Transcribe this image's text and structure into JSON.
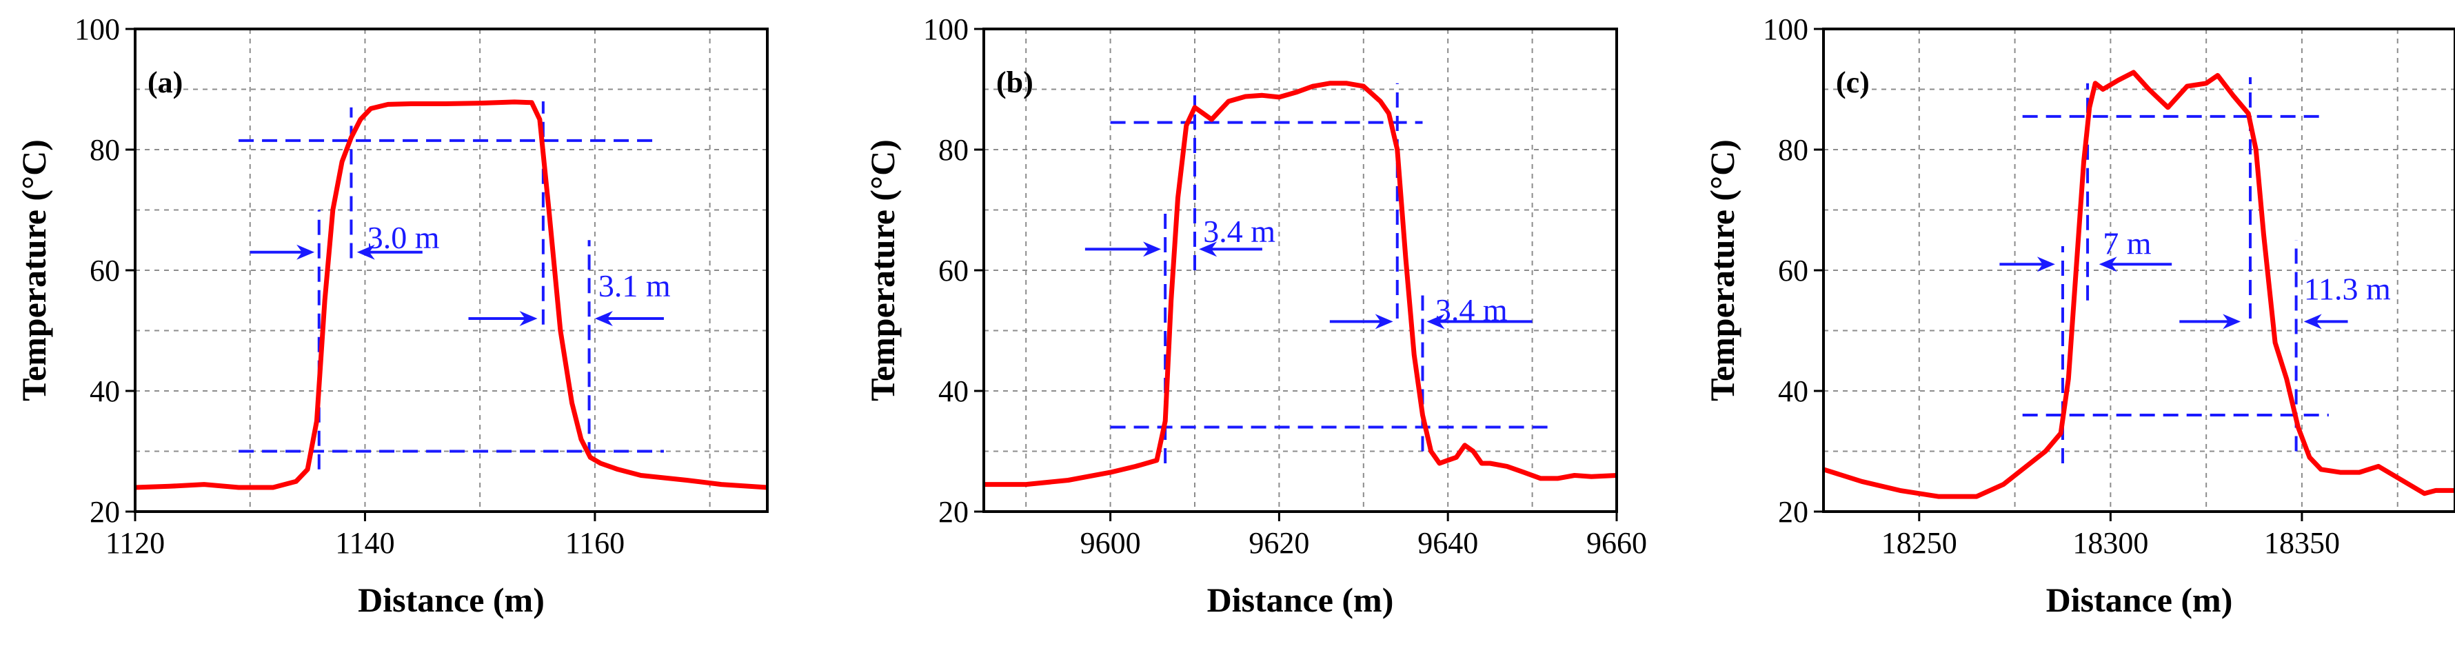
{
  "chart_data": [
    {
      "type": "line",
      "panel_label": "(a)",
      "xlabel": "Distance (m)",
      "ylabel": "Temperature (°C)",
      "xlim": [
        1120,
        1175
      ],
      "ylim": [
        20,
        100
      ],
      "xticks": [
        1120,
        1140,
        1160
      ],
      "xtick_labels": [
        "1120",
        "1140",
        "1160"
      ],
      "yticks": [
        20,
        40,
        60,
        80,
        100
      ],
      "ytick_labels": [
        "20",
        "40",
        "60",
        "80",
        "100"
      ],
      "grid": true,
      "series": [
        {
          "name": "Temperature",
          "color": "#ff0000",
          "x": [
            1120,
            1123,
            1126,
            1129,
            1132,
            1134,
            1135,
            1135.8,
            1136.5,
            1137.2,
            1138,
            1138.8,
            1139.6,
            1140.5,
            1142,
            1144,
            1147,
            1150,
            1153,
            1154.5,
            1155.2,
            1156,
            1157,
            1158,
            1158.8,
            1159.6,
            1160.5,
            1162,
            1164,
            1166,
            1168,
            1171,
            1175
          ],
          "y": [
            24,
            24.2,
            24.5,
            24,
            24,
            25,
            27,
            35,
            55,
            70,
            78,
            82,
            85,
            86.8,
            87.5,
            87.6,
            87.6,
            87.7,
            87.9,
            87.8,
            85,
            70,
            50,
            38,
            32,
            29,
            28,
            27,
            26,
            25.6,
            25.2,
            24.5,
            24
          ]
        }
      ],
      "guides": {
        "h": [
          {
            "y": 81.5,
            "x0": 1129,
            "x1": 1165
          },
          {
            "y": 30,
            "x0": 1129,
            "x1": 1166
          }
        ],
        "v": [
          {
            "x": 1136,
            "y0": 27,
            "y1": 70
          },
          {
            "x": 1138.8,
            "y0": 62,
            "y1": 87
          },
          {
            "x": 1155.5,
            "y0": 51,
            "y1": 88
          },
          {
            "x": 1159.5,
            "y0": 29,
            "y1": 65
          }
        ]
      },
      "annotations": [
        {
          "text": "3.0 m",
          "x": 1140.2,
          "y": 65.5
        },
        {
          "text": "3.1 m",
          "x": 1160.3,
          "y": 57.5
        }
      ],
      "arrows": [
        {
          "x_from": 1130,
          "x_to": 1135.6,
          "y": 63,
          "dir": "right"
        },
        {
          "x_from": 1145,
          "x_to": 1139.3,
          "y": 63,
          "dir": "left"
        },
        {
          "x_from": 1149,
          "x_to": 1155,
          "y": 52,
          "dir": "right"
        },
        {
          "x_from": 1166,
          "x_to": 1160,
          "y": 52,
          "dir": "left"
        }
      ]
    },
    {
      "type": "line",
      "panel_label": "(b)",
      "xlabel": "Distance (m)",
      "ylabel": "Temperature (°C)",
      "xlim": [
        9585,
        9660
      ],
      "ylim": [
        20,
        100
      ],
      "xticks": [
        9600,
        9620,
        9640,
        9660
      ],
      "xtick_labels": [
        "9600",
        "9620",
        "9640",
        "9660"
      ],
      "yticks": [
        20,
        40,
        60,
        80,
        100
      ],
      "ytick_labels": [
        "20",
        "40",
        "60",
        "80",
        "100"
      ],
      "grid": true,
      "series": [
        {
          "name": "Temperature",
          "color": "#ff0000",
          "x": [
            9585,
            9590,
            9595,
            9600,
            9603,
            9605.5,
            9606.5,
            9607.2,
            9608,
            9609,
            9610,
            9611,
            9612,
            9613,
            9614,
            9616,
            9618,
            9620,
            9622,
            9624,
            9626,
            9628,
            9630,
            9632,
            9633,
            9634,
            9635,
            9636,
            9637,
            9638,
            9639,
            9640,
            9641,
            9642,
            9643,
            9644,
            9645,
            9647,
            9649,
            9651,
            9653,
            9655,
            9657,
            9660
          ],
          "y": [
            24.5,
            24.5,
            25.2,
            26.5,
            27.5,
            28.5,
            35,
            55,
            72,
            84,
            87,
            86,
            85,
            86.5,
            88,
            88.8,
            89,
            88.7,
            89.5,
            90.5,
            91,
            91,
            90.5,
            88,
            86,
            80,
            62,
            46,
            36,
            30,
            28,
            28.5,
            29,
            31,
            30,
            28,
            28,
            27.5,
            26.5,
            25.5,
            25.5,
            26,
            25.8,
            26
          ]
        }
      ],
      "guides": {
        "h": [
          {
            "y": 84.5,
            "x0": 9600,
            "x1": 9637
          },
          {
            "y": 34,
            "x0": 9600,
            "x1": 9652
          }
        ],
        "v": [
          {
            "x": 9606.5,
            "y0": 28,
            "y1": 70
          },
          {
            "x": 9610,
            "y0": 60,
            "y1": 89
          },
          {
            "x": 9634,
            "y0": 52,
            "y1": 91
          },
          {
            "x": 9637,
            "y0": 30,
            "y1": 57
          }
        ]
      },
      "annotations": [
        {
          "text": "3.4 m",
          "x": 9611,
          "y": 66.5
        },
        {
          "text": "3.4 m",
          "x": 9638.5,
          "y": 53.5
        }
      ],
      "arrows": [
        {
          "x_from": 9597,
          "x_to": 9606,
          "y": 63.5,
          "dir": "right"
        },
        {
          "x_from": 9618,
          "x_to": 9610.5,
          "y": 63.5,
          "dir": "left"
        },
        {
          "x_from": 9626,
          "x_to": 9633.5,
          "y": 51.5,
          "dir": "right"
        },
        {
          "x_from": 9650,
          "x_to": 9637.5,
          "y": 51.5,
          "dir": "left"
        }
      ]
    },
    {
      "type": "line",
      "panel_label": "(c)",
      "xlabel": "Distance (m)",
      "ylabel": "Temperature (°C)",
      "xlim": [
        18225,
        18390
      ],
      "ylim": [
        20,
        100
      ],
      "xticks": [
        18250,
        18300,
        18350
      ],
      "xtick_labels": [
        "18250",
        "18300",
        "18350"
      ],
      "yticks": [
        20,
        40,
        60,
        80,
        100
      ],
      "ytick_labels": [
        "20",
        "40",
        "60",
        "80",
        "100"
      ],
      "grid": true,
      "series": [
        {
          "name": "Temperature",
          "color": "#ff0000",
          "x": [
            18225,
            18235,
            18245,
            18255,
            18265,
            18272,
            18278,
            18283,
            18287,
            18289,
            18291,
            18293,
            18294.5,
            18296,
            18298,
            18302,
            18306,
            18310,
            18315,
            18320,
            18325,
            18328,
            18332,
            18336,
            18338,
            18340,
            18343,
            18346,
            18349,
            18352,
            18355,
            18360,
            18365,
            18370,
            18374,
            18378,
            18382,
            18385,
            18390
          ],
          "y": [
            27,
            25,
            23.5,
            22.5,
            22.5,
            24.5,
            27.5,
            30,
            33,
            42,
            60,
            78,
            87,
            91,
            90,
            91.5,
            92.8,
            90,
            87,
            90.5,
            91,
            92.3,
            89,
            86,
            80,
            66,
            48,
            42,
            34,
            29,
            27,
            26.5,
            26.5,
            27.5,
            26,
            24.5,
            23,
            23.5,
            23.5
          ]
        }
      ],
      "guides": {
        "h": [
          {
            "y": 85.5,
            "x0": 18277,
            "x1": 18355
          },
          {
            "y": 36,
            "x0": 18277,
            "x1": 18357
          }
        ],
        "v": [
          {
            "x": 18287.5,
            "y0": 28,
            "y1": 64
          },
          {
            "x": 18294,
            "y0": 55,
            "y1": 91
          },
          {
            "x": 18336.5,
            "y0": 52,
            "y1": 92
          },
          {
            "x": 18348.5,
            "y0": 30,
            "y1": 65
          }
        ]
      },
      "annotations": [
        {
          "text": "7 m",
          "x": 18298,
          "y": 64.5
        },
        {
          "text": "11.3 m",
          "x": 18350.5,
          "y": 57
        }
      ],
      "arrows": [
        {
          "x_from": 18271,
          "x_to": 18285.5,
          "y": 61,
          "dir": "right"
        },
        {
          "x_from": 18316,
          "x_to": 18297,
          "y": 61,
          "dir": "left"
        },
        {
          "x_from": 18318,
          "x_to": 18334,
          "y": 51.5,
          "dir": "right"
        },
        {
          "x_from": 18362,
          "x_to": 18350.5,
          "y": 51.5,
          "dir": "left"
        }
      ]
    }
  ],
  "colors": {
    "line": "#ff0000",
    "guide": "#1a1aff",
    "annotation": "#1a1aff",
    "grid": "#8c8c8c",
    "axis": "#000000"
  }
}
